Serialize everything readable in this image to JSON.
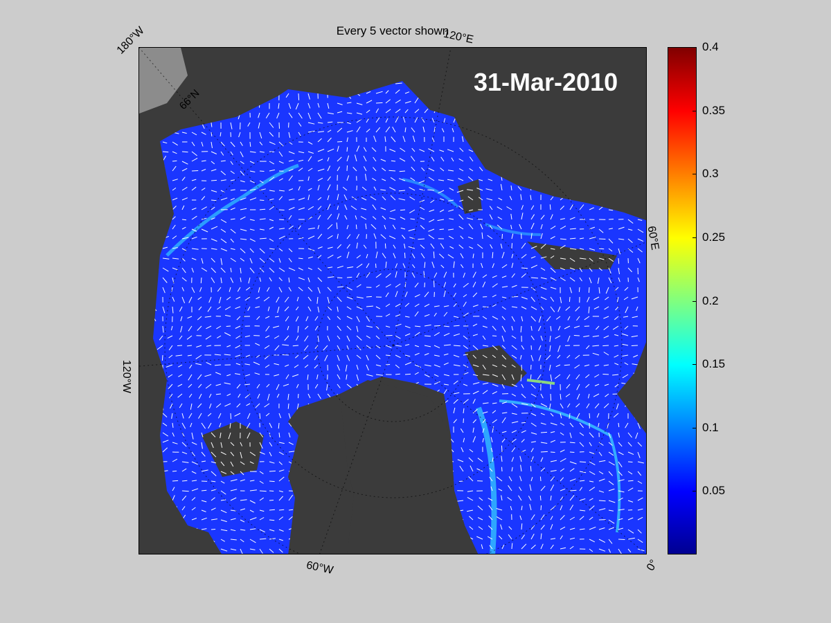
{
  "title": "Every 5 vector shown",
  "date": "31-Mar-2010",
  "lon_labels": {
    "w180": "180°W",
    "e120": "120°E",
    "e60": "60°E",
    "w120": "120°W",
    "w60": "60°W",
    "zero": "0°"
  },
  "lat_label": "66°N",
  "colorbar": {
    "colormap": "jet",
    "range": [
      0,
      0.4
    ],
    "ticks": [
      "0.4",
      "0.35",
      "0.3",
      "0.25",
      "0.2",
      "0.15",
      "0.1",
      "0.05"
    ],
    "tick_values": [
      0.4,
      0.35,
      0.3,
      0.25,
      0.2,
      0.15,
      0.1,
      0.05
    ]
  },
  "colors": {
    "ocean_field": "#1a36ff",
    "land": "#3b3b3b",
    "uncovered": "#8c8c8c",
    "vector": "#ffffff",
    "background": "#cccccc"
  }
}
